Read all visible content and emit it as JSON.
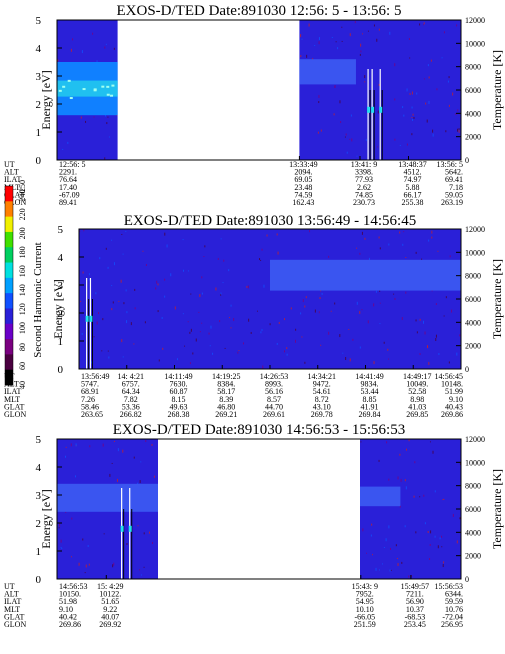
{
  "colors": {
    "background": "#2a20d8",
    "band": "#3a55f0",
    "streak": "#22e0f0",
    "data_gap": "#ffffff"
  },
  "colorbar": {
    "label": "Second Harmonic Current",
    "ticks": [
      "40",
      "60",
      "80",
      "100",
      "120",
      "140",
      "160",
      "180",
      "200",
      "220",
      "240",
      "250"
    ],
    "colors": [
      "#000000",
      "#4a0040",
      "#7a0080",
      "#6a00c8",
      "#2a20d8",
      "#1050ff",
      "#00a0ff",
      "#00e0e0",
      "#00d060",
      "#40e000",
      "#f0f000",
      "#ff8000",
      "#ff0000"
    ]
  },
  "panels": [
    {
      "title": "EXOS-D/TED   Date:891030  12:56: 5 - 13:56: 5",
      "ylabel": "Energy [eV]",
      "y2label": "Temperature [K]",
      "yticks": [
        "0",
        "1",
        "2",
        "3",
        "4",
        "5"
      ],
      "y2ticks": [
        "0",
        "2000",
        "4000",
        "6000",
        "8000",
        "10000",
        "12000"
      ],
      "orbit_labels": [
        "UT",
        "ALT",
        "ILAT",
        "MLT",
        "GLAT",
        "GLON"
      ],
      "orbit_columns": [
        {
          "x": 0.0,
          "values": [
            "12:56: 5",
            "2291.",
            "76.64",
            "17.40",
            "-67.09",
            "89.41"
          ]
        },
        {
          "x": 0.6,
          "values": [
            "13:33:49",
            "2094.",
            "69.05",
            "23.48",
            "74.59",
            "162.43"
          ]
        },
        {
          "x": 0.75,
          "values": [
            "13:41: 9",
            "3398.",
            "77.93",
            "2.62",
            "74.85",
            "230.73"
          ]
        },
        {
          "x": 0.87,
          "values": [
            "13:48:37",
            "4512.",
            "74.97",
            "5.88",
            "66.17",
            "255.38"
          ]
        },
        {
          "x": 1.0,
          "values": [
            "13:56: 5",
            "5642.",
            "69.41",
            "7.18",
            "59.05",
            "263.19"
          ]
        }
      ],
      "data_segments": [
        [
          0.0,
          0.15
        ],
        [
          0.6,
          1.0
        ]
      ],
      "bands": [
        {
          "x0": 0.0,
          "x1": 0.15,
          "e0": 1.6,
          "e1": 3.5,
          "intensity": "bright"
        },
        {
          "x0": 0.6,
          "x1": 0.74,
          "e0": 2.7,
          "e1": 3.6,
          "intensity": "mid"
        }
      ],
      "streaks": [
        0.77,
        0.78,
        0.8
      ]
    },
    {
      "title": "EXOS-D/TED   Date:891030  13:56:49 - 14:56:45",
      "ylabel": "Energy [eV]",
      "y2label": "Temperature [K]",
      "yticks": [
        "0",
        "1",
        "2",
        "3",
        "4",
        "5"
      ],
      "y2ticks": [
        "0",
        "2000",
        "4000",
        "6000",
        "8000",
        "10000",
        "12000"
      ],
      "orbit_labels": [
        "UT",
        "ALT",
        "ILAT",
        "MLT",
        "GLAT",
        "GLON"
      ],
      "orbit_columns": [
        {
          "x": 0.0,
          "values": [
            "13:56:49",
            "5747.",
            "68.91",
            "7.26",
            "58.46",
            "263.65"
          ]
        },
        {
          "x": 0.125,
          "values": [
            "14: 4:21",
            "6757.",
            "64.34",
            "7.82",
            "53.36",
            "266.82"
          ]
        },
        {
          "x": 0.25,
          "values": [
            "14:11:49",
            "7630.",
            "60.87",
            "8.15",
            "49.63",
            "268.38"
          ]
        },
        {
          "x": 0.375,
          "values": [
            "14:19:25",
            "8384.",
            "58.17",
            "8.39",
            "46.80",
            "269.21"
          ]
        },
        {
          "x": 0.5,
          "values": [
            "14:26:53",
            "8993.",
            "56.16",
            "8.57",
            "44.70",
            "269.61"
          ]
        },
        {
          "x": 0.625,
          "values": [
            "14:34:21",
            "9472.",
            "54.61",
            "8.72",
            "43.10",
            "269.78"
          ]
        },
        {
          "x": 0.75,
          "values": [
            "14:41:49",
            "9834.",
            "53.44",
            "8.85",
            "41.91",
            "269.84"
          ]
        },
        {
          "x": 0.875,
          "values": [
            "14:49:17",
            "10049.",
            "52.58",
            "8.98",
            "41.03",
            "269.85"
          ]
        },
        {
          "x": 1.0,
          "values": [
            "14:56:45",
            "10148.",
            "51.99",
            "9.10",
            "40.43",
            "269.86"
          ]
        }
      ],
      "data_segments": [
        [
          0.0,
          1.0
        ]
      ],
      "bands": [
        {
          "x0": 0.5,
          "x1": 1.0,
          "e0": 2.8,
          "e1": 3.9,
          "intensity": "mid"
        }
      ],
      "streaks": [
        0.02,
        0.03
      ]
    },
    {
      "title": "EXOS-D/TED   Date:891030  14:56:53 - 15:56:53",
      "ylabel": "Energy [eV]",
      "y2label": "Temperature [K]",
      "yticks": [
        "0",
        "1",
        "2",
        "3",
        "4",
        "5"
      ],
      "y2ticks": [
        "0",
        "2000",
        "4000",
        "6000",
        "8000",
        "10000",
        "12000"
      ],
      "orbit_labels": [
        "UT",
        "ALT",
        "ILAT",
        "MLT",
        "GLAT",
        "GLON"
      ],
      "orbit_columns": [
        {
          "x": 0.0,
          "values": [
            "14:56:53",
            "10150.",
            "51.98",
            "9.10",
            "40.42",
            "269.86"
          ]
        },
        {
          "x": 0.122,
          "values": [
            "15: 4:29",
            "10122.",
            "51.65",
            "9.22",
            "40.07",
            "269.92"
          ]
        },
        {
          "x": 0.752,
          "values": [
            "15:43: 9",
            "7952.",
            "54.95",
            "10.10",
            "-66.05",
            "251.59"
          ]
        },
        {
          "x": 0.876,
          "values": [
            "15:49:57",
            "7211.",
            "56.90",
            "10.37",
            "-68.53",
            "253.45"
          ]
        },
        {
          "x": 1.0,
          "values": [
            "15:56:53",
            "6344.",
            "59.59",
            "10.76",
            "-72.04",
            "256.95"
          ]
        }
      ],
      "data_segments": [
        [
          0.0,
          0.25
        ],
        [
          0.75,
          1.0
        ]
      ],
      "bands": [
        {
          "x0": 0.0,
          "x1": 0.25,
          "e0": 2.4,
          "e1": 3.4,
          "intensity": "mid"
        },
        {
          "x0": 0.75,
          "x1": 0.85,
          "e0": 2.6,
          "e1": 3.3,
          "intensity": "mid"
        }
      ],
      "streaks": [
        0.16,
        0.18
      ]
    }
  ],
  "chart_data": [
    {
      "type": "heatmap",
      "title": "EXOS-D/TED   Date:891030  12:56: 5 - 13:56: 5",
      "xlabel": "",
      "ylabel": "Energy [eV]",
      "y2label": "Temperature [K]",
      "ylim": [
        0,
        5
      ],
      "y2lim": [
        0,
        12000
      ],
      "x_tick_labels": [
        "12:56: 5",
        "13:33:49",
        "13:41: 9",
        "13:48:37",
        "13:56: 5"
      ],
      "colorbar_ticks": [
        40,
        60,
        80,
        100,
        120,
        140,
        160,
        180,
        200,
        220,
        240,
        250
      ]
    },
    {
      "type": "heatmap",
      "title": "EXOS-D/TED   Date:891030  13:56:49 - 14:56:45",
      "xlabel": "",
      "ylabel": "Energy [eV]",
      "y2label": "Temperature [K]",
      "ylim": [
        0,
        5
      ],
      "y2lim": [
        0,
        12000
      ],
      "x_tick_labels": [
        "13:56:49",
        "14: 4:21",
        "14:11:49",
        "14:19:25",
        "14:26:53",
        "14:34:21",
        "14:41:49",
        "14:49:17",
        "14:56:45"
      ],
      "colorbar_ticks": [
        40,
        60,
        80,
        100,
        120,
        140,
        160,
        180,
        200,
        220,
        240,
        250
      ]
    },
    {
      "type": "heatmap",
      "title": "EXOS-D/TED   Date:891030  14:56:53 - 15:56:53",
      "xlabel": "",
      "ylabel": "Energy [eV]",
      "y2label": "Temperature [K]",
      "ylim": [
        0,
        5
      ],
      "y2lim": [
        0,
        12000
      ],
      "x_tick_labels": [
        "14:56:53",
        "15: 4:29",
        "15:43: 9",
        "15:49:57",
        "15:56:53"
      ],
      "colorbar_ticks": [
        40,
        60,
        80,
        100,
        120,
        140,
        160,
        180,
        200,
        220,
        240,
        250
      ]
    }
  ]
}
